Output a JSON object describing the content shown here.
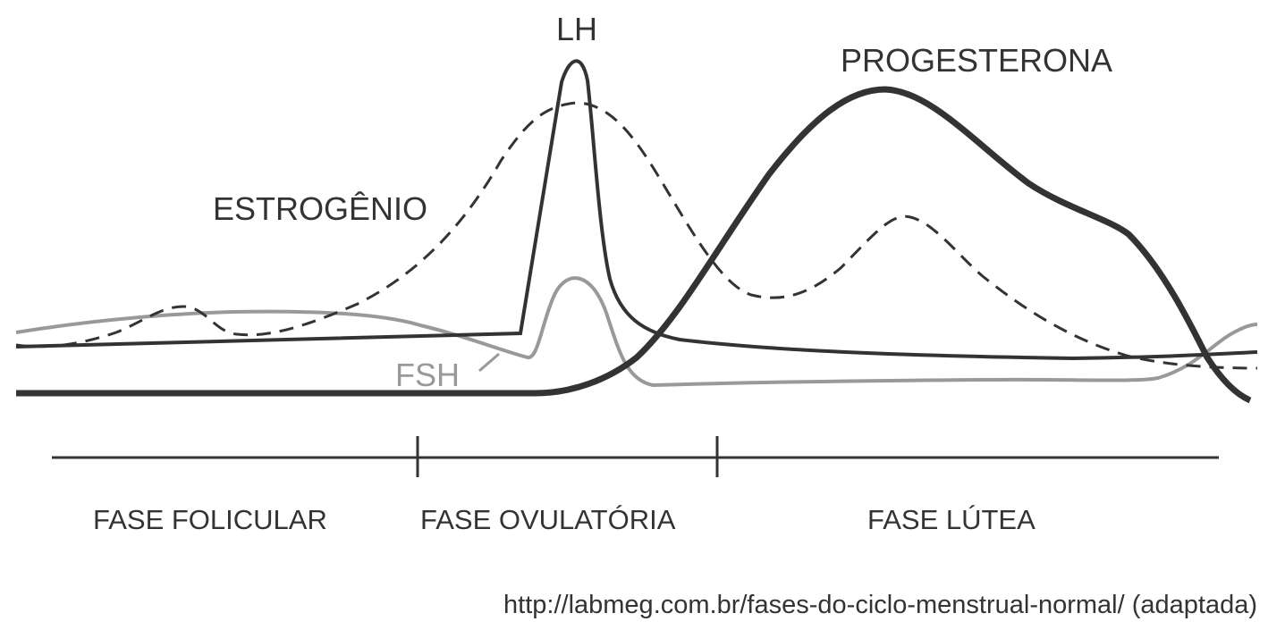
{
  "hormones": {
    "lh": "LH",
    "progesterona": "PROGESTERONA",
    "estrogenio": "ESTROGÊNIO",
    "fsh": "FSH"
  },
  "phases": {
    "folicular": "FASE FOLICULAR",
    "ovulatoria": "FASE OVULATÓRIA",
    "lutea": "FASE LÚTEA"
  },
  "source": "http://labmeg.com.br/fases-do-ciclo-menstrual-normal/ (adaptada)",
  "colors": {
    "lh": "#333333",
    "progesterona": "#333333",
    "estrogenio": "#333333",
    "fsh": "#999999",
    "text": "#333333"
  }
}
